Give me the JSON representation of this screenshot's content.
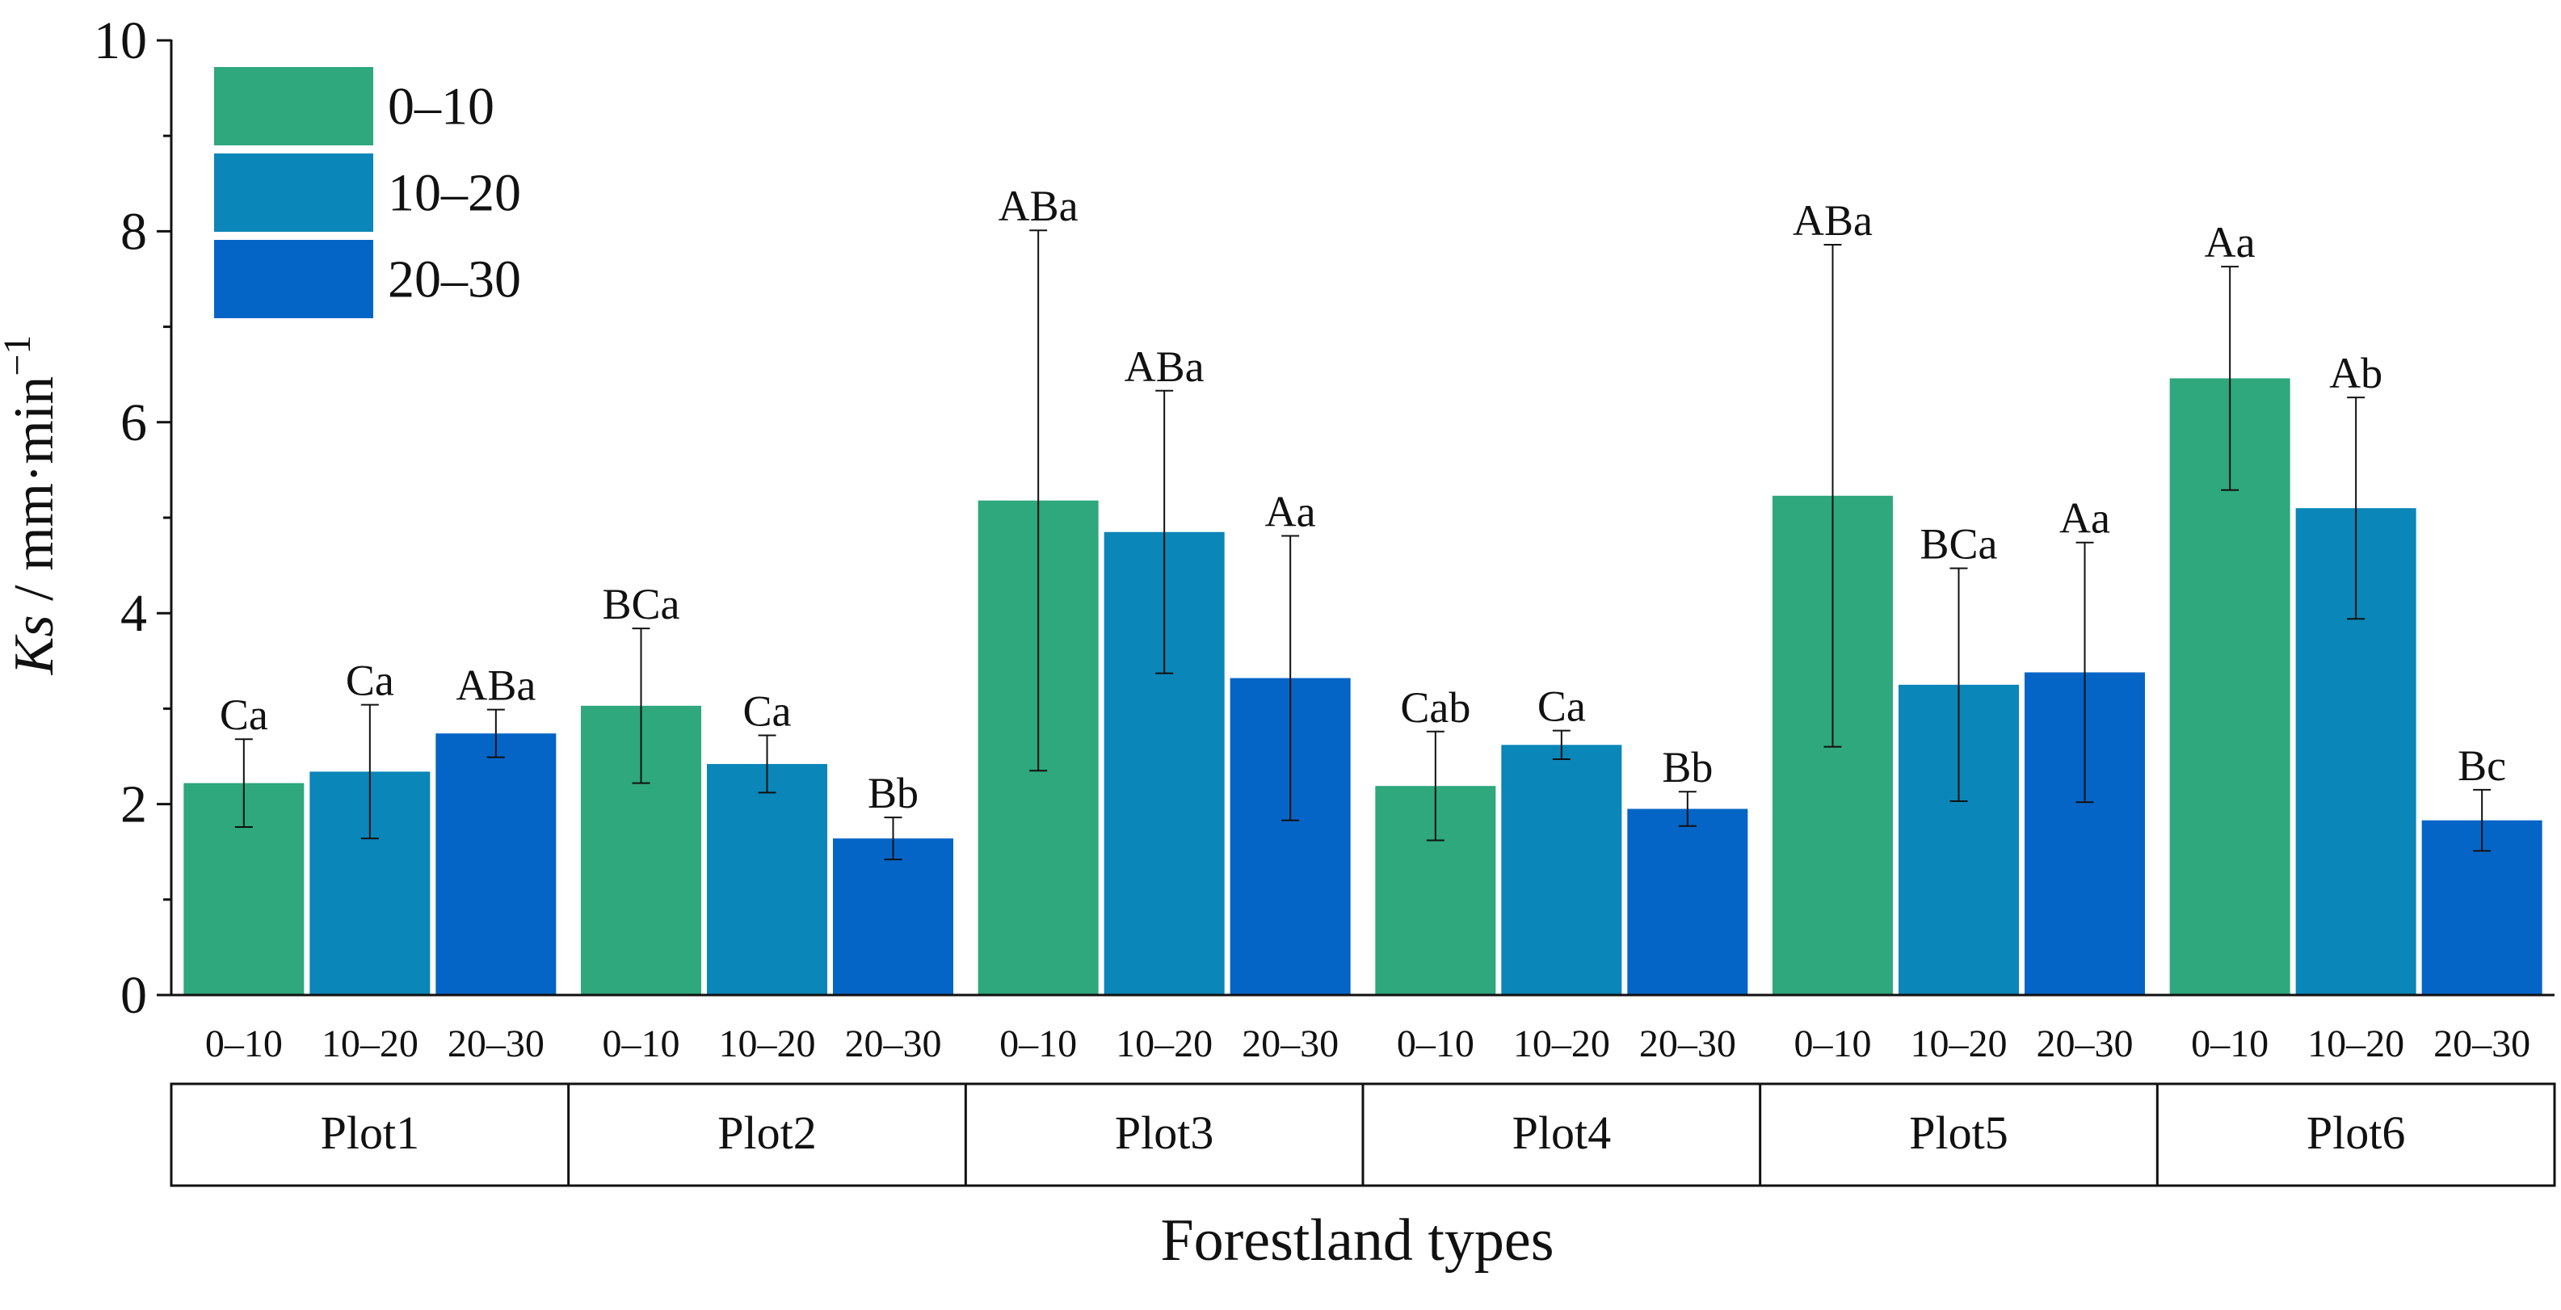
{
  "chart_data": {
    "type": "bar",
    "title": "",
    "ylabel_italic": "Ks",
    "ylabel_rest": " / mm·min",
    "ylabel_sup": "−1",
    "xlabel": "Forestland types",
    "ylim": [
      0,
      10
    ],
    "yticks": [
      "0",
      "2",
      "4",
      "6",
      "8",
      "10"
    ],
    "groups": [
      "Plot1",
      "Plot2",
      "Plot3",
      "Plot4",
      "Plot5",
      "Plot6"
    ],
    "depth_ticks": [
      "0–10",
      "10–20",
      "20–30"
    ],
    "legend_position": "top-left",
    "series": [
      {
        "name": "0–10",
        "color": "#2ea87c",
        "values": [
          2.22,
          3.03,
          5.18,
          2.19,
          5.23,
          6.46
        ],
        "errors": [
          0.46,
          0.81,
          2.83,
          0.57,
          2.63,
          1.17
        ],
        "letters": [
          "Ca",
          "BCa",
          "ABa",
          "Cab",
          "ABa",
          "Aa"
        ]
      },
      {
        "name": "10–20",
        "color": "#0a86b8",
        "values": [
          2.34,
          2.42,
          4.85,
          2.62,
          3.25,
          5.1
        ],
        "errors": [
          0.7,
          0.3,
          1.48,
          0.15,
          1.22,
          1.16
        ],
        "letters": [
          "Ca",
          "Ca",
          "ABa",
          "Ca",
          "BCa",
          "Ab"
        ]
      },
      {
        "name": "20–30",
        "color": "#0565c6",
        "values": [
          2.74,
          1.64,
          3.32,
          1.95,
          3.38,
          1.83
        ],
        "errors": [
          0.25,
          0.22,
          1.49,
          0.18,
          1.36,
          0.32
        ],
        "letters": [
          "ABa",
          "Bb",
          "Aa",
          "Bb",
          "Aa",
          "Bc"
        ]
      }
    ]
  }
}
